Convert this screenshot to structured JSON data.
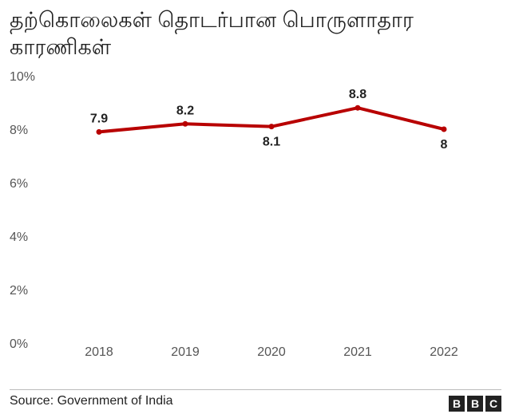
{
  "title": "தற்கொலைகள் தொடர்பான பொருளாதார காரணிகள்",
  "source": "Source: Government of India",
  "logo": {
    "letters": [
      "B",
      "B",
      "C"
    ]
  },
  "colors": {
    "line": "#b80000",
    "text": "#222222",
    "axis": "#555555"
  },
  "chart_data": {
    "type": "line",
    "title": "தற்கொலைகள் தொடர்பான பொருளாதார காரணிகள்",
    "xlabel": "",
    "ylabel": "",
    "x": [
      "2018",
      "2019",
      "2020",
      "2021",
      "2022"
    ],
    "series": [
      {
        "values": [
          7.9,
          8.2,
          8.1,
          8.8,
          8
        ],
        "labels": [
          "7.9",
          "8.2",
          "8.1",
          "8.8",
          "8"
        ]
      }
    ],
    "ylim": [
      0,
      10
    ],
    "yticks": [
      0,
      2,
      4,
      6,
      8,
      10
    ],
    "ytick_labels": [
      "0%",
      "2%",
      "4%",
      "6%",
      "8%",
      "10%"
    ],
    "grid": false,
    "legend": "none"
  }
}
